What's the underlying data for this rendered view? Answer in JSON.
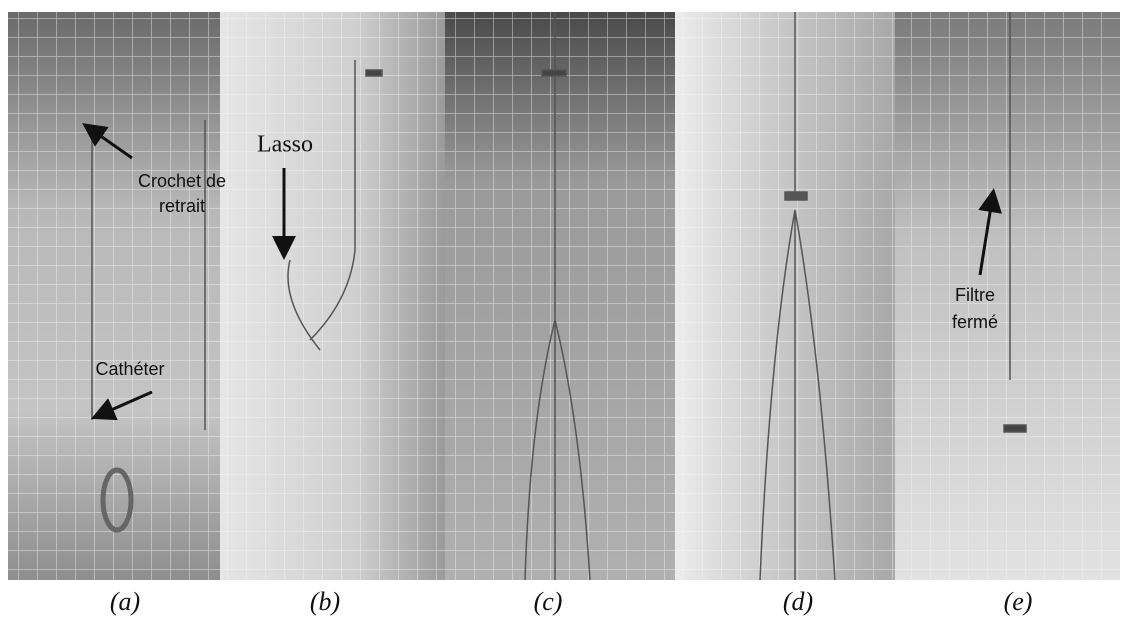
{
  "panels": [
    {
      "label": "(a)",
      "annotations": [
        {
          "lines": [
            "Crochet de",
            "retrait"
          ]
        },
        {
          "lines": [
            "Cathéter"
          ]
        }
      ]
    },
    {
      "label": "(b)",
      "annotations": [
        {
          "lines": [
            "Lasso"
          ]
        }
      ]
    },
    {
      "label": "(c)"
    },
    {
      "label": "(d)"
    },
    {
      "label": "(e)",
      "annotations": [
        {
          "lines": [
            "Filtre",
            "fermé"
          ]
        }
      ]
    }
  ]
}
